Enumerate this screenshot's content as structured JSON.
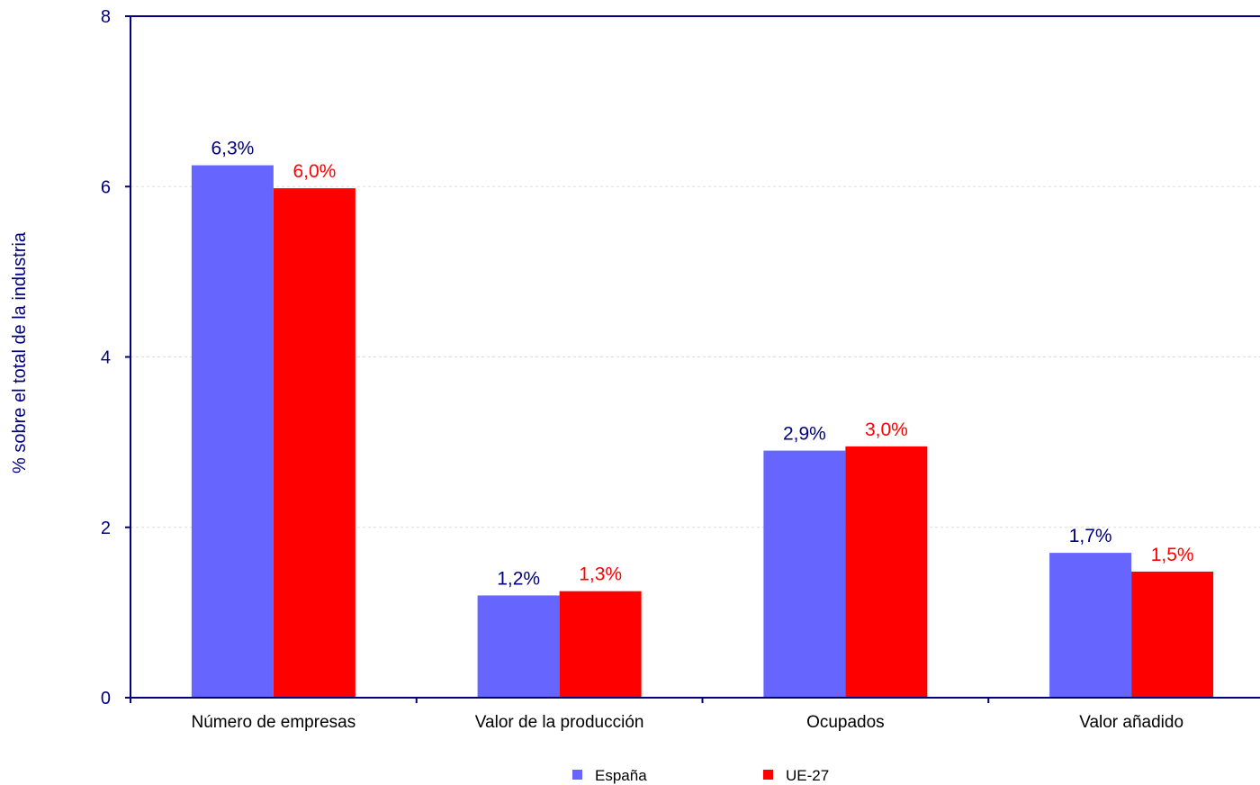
{
  "chart_data": {
    "type": "bar",
    "title": "",
    "xlabel": "",
    "ylabel": "% sobre el total de la industria",
    "ylim": [
      0,
      8
    ],
    "yticks": [
      "0",
      "2",
      "4",
      "6",
      "8"
    ],
    "categories": [
      "Número de empresas",
      "Valor de la producción",
      "Ocupados",
      "Valor añadido"
    ],
    "series": [
      {
        "name": "España",
        "values": [
          6.25,
          1.2,
          2.9,
          1.7
        ],
        "labels": [
          "6,3%",
          "1,2%",
          "2,9%",
          "1,7%"
        ],
        "color": "#6666FF",
        "label_color": "#000080"
      },
      {
        "name": "UE-27",
        "values": [
          5.98,
          1.25,
          2.95,
          1.48
        ],
        "labels": [
          "6,0%",
          "1,3%",
          "3,0%",
          "1,5%"
        ],
        "color": "#FF0000",
        "label_color": "#FF0000"
      }
    ],
    "grid": true,
    "legend_position": "bottom"
  }
}
